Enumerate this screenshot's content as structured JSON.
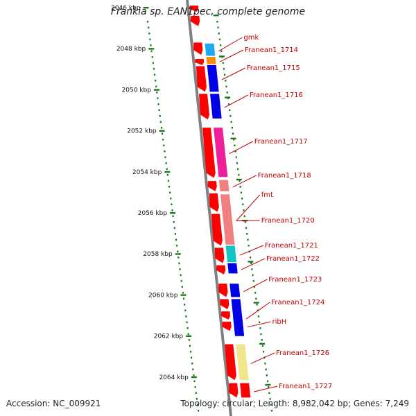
{
  "title": "Frankia sp. EAN1pec, complete genome",
  "footer": {
    "accession": "Accession: NC_009921",
    "summary": "Topology: circular; Length: 8,982,042 bp; Genes: 7,249"
  },
  "colors": {
    "label": "#c00000",
    "backbone": "#808080",
    "ruler": "#1a7a1a",
    "forward_gene": "#ff0000"
  },
  "ruler": {
    "ticks": [
      {
        "kbp": 2046,
        "label": "2046 kbp"
      },
      {
        "kbp": 2048,
        "label": "2048 kbp"
      },
      {
        "kbp": 2050,
        "label": "2050 kbp"
      },
      {
        "kbp": 2052,
        "label": "2052 kbp"
      },
      {
        "kbp": 2054,
        "label": "2054 kbp"
      },
      {
        "kbp": 2056,
        "label": "2056 kbp"
      },
      {
        "kbp": 2058,
        "label": "2058 kbp"
      },
      {
        "kbp": 2060,
        "label": "2060 kbp"
      },
      {
        "kbp": 2062,
        "label": "2062 kbp"
      },
      {
        "kbp": 2064,
        "label": "2064 kbp"
      }
    ]
  },
  "genes": [
    {
      "name": "gmk",
      "color": "#1eaaf0",
      "start_kbp": 2047.75,
      "end_kbp": 2048.35
    },
    {
      "name": "Franean1_1714",
      "color": "#ff8c00",
      "start_kbp": 2048.4,
      "end_kbp": 2048.75
    },
    {
      "name": "Franean1_1715",
      "color": "#0000e6",
      "start_kbp": 2048.8,
      "end_kbp": 2050.1
    },
    {
      "name": "Franean1_1716",
      "color": "#0000e6",
      "start_kbp": 2050.2,
      "end_kbp": 2051.4
    },
    {
      "name": "Franean1_1717",
      "color": "#ee1f9b",
      "start_kbp": 2051.85,
      "end_kbp": 2054.25
    },
    {
      "name": "Franean1_1718",
      "color": "#f08080",
      "start_kbp": 2054.4,
      "end_kbp": 2054.95
    },
    {
      "name": "fmt",
      "color": "#f08080",
      "start_kbp": 2055.1,
      "end_kbp": 2057.55
    },
    {
      "name": "Franean1_1720",
      "color": "#f08080",
      "start_kbp": 2055.1,
      "end_kbp": 2057.55
    },
    {
      "name": "Franean1_1721",
      "color": "#12c4c4",
      "start_kbp": 2057.6,
      "end_kbp": 2058.4
    },
    {
      "name": "Franean1_1722",
      "color": "#0000e6",
      "start_kbp": 2058.45,
      "end_kbp": 2058.95
    },
    {
      "name": "Franean1_1723",
      "color": "#0000e6",
      "start_kbp": 2059.45,
      "end_kbp": 2060.1
    },
    {
      "name": "Franean1_1724",
      "color": "#0000e6",
      "start_kbp": 2060.2,
      "end_kbp": 2062.0
    },
    {
      "name": "ribH",
      "color": "#0000e6",
      "start_kbp": 2061.0,
      "end_kbp": 2062.0
    },
    {
      "name": "Franean1_1726",
      "color": "#f0e68c",
      "start_kbp": 2062.4,
      "end_kbp": 2064.15
    },
    {
      "name": "Franean1_1727",
      "color": "#ff0000",
      "start_kbp": 2064.3,
      "end_kbp": 2065.0
    }
  ],
  "forward_genes": [
    {
      "start_kbp": 2045.9,
      "end_kbp": 2046.2
    },
    {
      "start_kbp": 2046.4,
      "end_kbp": 2046.9
    },
    {
      "start_kbp": 2047.7,
      "end_kbp": 2048.3
    },
    {
      "start_kbp": 2048.5,
      "end_kbp": 2048.8
    },
    {
      "start_kbp": 2048.85,
      "end_kbp": 2050.1
    },
    {
      "start_kbp": 2050.2,
      "end_kbp": 2051.45
    },
    {
      "start_kbp": 2051.85,
      "end_kbp": 2054.3
    },
    {
      "start_kbp": 2054.45,
      "end_kbp": 2054.95
    },
    {
      "start_kbp": 2055.05,
      "end_kbp": 2055.95
    },
    {
      "start_kbp": 2056.05,
      "end_kbp": 2057.6
    },
    {
      "start_kbp": 2057.7,
      "end_kbp": 2058.45
    },
    {
      "start_kbp": 2058.55,
      "end_kbp": 2059.0
    },
    {
      "start_kbp": 2059.45,
      "end_kbp": 2060.1
    },
    {
      "start_kbp": 2060.2,
      "end_kbp": 2060.7
    },
    {
      "start_kbp": 2060.8,
      "end_kbp": 2061.2
    },
    {
      "start_kbp": 2061.3,
      "end_kbp": 2061.75
    },
    {
      "start_kbp": 2062.4,
      "end_kbp": 2064.15
    },
    {
      "start_kbp": 2064.3,
      "end_kbp": 2065.0
    }
  ]
}
